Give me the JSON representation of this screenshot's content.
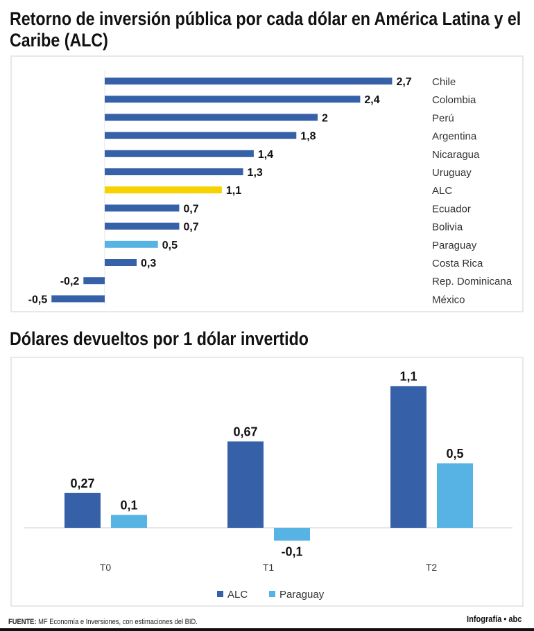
{
  "chart_data": [
    {
      "type": "bar",
      "orientation": "horizontal",
      "title": "Retorno de inversión pública por cada dólar en América Latina y el Caribe (ALC)",
      "categories": [
        "Chile",
        "Colombia",
        "Perú",
        "Argentina",
        "Nicaragua",
        "Uruguay",
        "ALC",
        "Ecuador",
        "Bolivia",
        "Paraguay",
        "Costa Rica",
        "Rep. Dominicana",
        "México"
      ],
      "values": [
        2.7,
        2.4,
        2,
        1.8,
        1.4,
        1.3,
        1.1,
        0.7,
        0.7,
        0.5,
        0.3,
        -0.2,
        -0.5
      ],
      "labels": [
        "2,7",
        "2,4",
        "2",
        "1,8",
        "1,4",
        "1,3",
        "1,1",
        "0,7",
        "0,7",
        "0,5",
        "0,3",
        "-0,2",
        "-0,5"
      ],
      "highlight": {
        "ALC": "#f7d200",
        "Paraguay": "#57b3e3"
      },
      "default_color": "#3661a9",
      "xlim": [
        -0.5,
        2.7
      ]
    },
    {
      "type": "bar",
      "title": "Dólares devueltos por 1 dólar invertido",
      "categories": [
        "T0",
        "T1",
        "T2"
      ],
      "series": [
        {
          "name": "ALC",
          "values": [
            0.27,
            0.67,
            1.1
          ],
          "labels": [
            "0,27",
            "0,67",
            "1,1"
          ],
          "color": "#3661a9"
        },
        {
          "name": "Paraguay",
          "values": [
            0.1,
            -0.1,
            0.5
          ],
          "labels": [
            "0,1",
            "-0,1",
            "0,5"
          ],
          "color": "#57b3e3"
        }
      ],
      "legend": "bottom",
      "ylim": [
        -0.1,
        1.1
      ]
    }
  ],
  "footer": {
    "source_label": "FUENTE:",
    "source_text": " MF Economía e Inversiones, con estimaciones del BID.",
    "credit": "Infografía • abc"
  }
}
